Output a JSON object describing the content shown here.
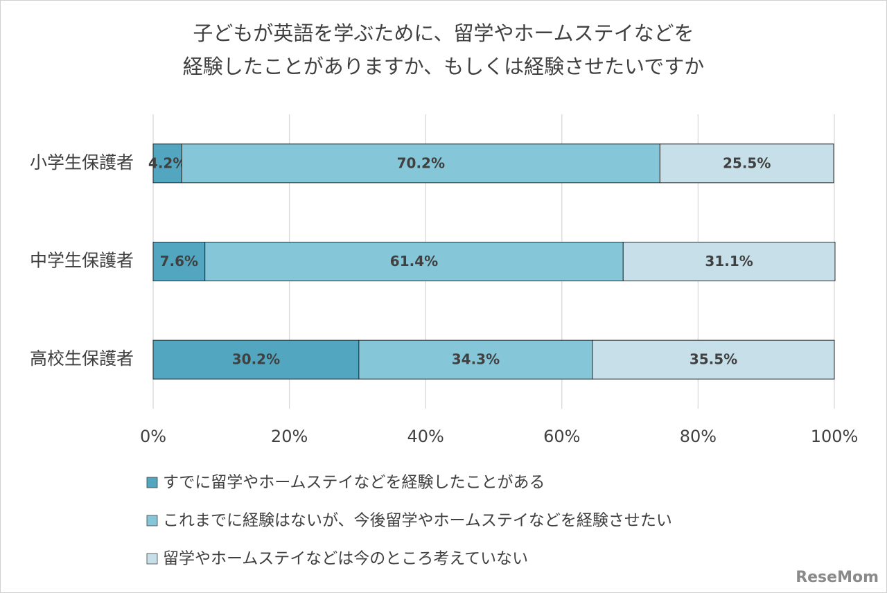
{
  "chart_data": {
    "type": "stacked-barh",
    "title": [
      "子どもが英語を学ぶために、留学やホームステイなどを",
      "経験したことがありますか、もしくは経験させたいですか"
    ],
    "categories": [
      "小学生保護者",
      "中学生保護者",
      "高校生保護者"
    ],
    "series": [
      {
        "name": "すでに留学やホームステイなどを経験したことがある",
        "color": "#52a6bf",
        "values": [
          4.2,
          7.6,
          30.2
        ],
        "value_labels": [
          "4.2%",
          "7.6%",
          "30.2%"
        ]
      },
      {
        "name": "これまでに経験はないが、今後留学やホームステイなどを経験させたい",
        "color": "#85c6d8",
        "values": [
          70.2,
          61.4,
          34.3
        ],
        "value_labels": [
          "70.2%",
          "61.4%",
          "34.3%"
        ]
      },
      {
        "name": "留学やホームステイなどは今のところ考えていない",
        "color": "#c6dfe8",
        "values": [
          25.5,
          31.1,
          35.5
        ],
        "value_labels": [
          "25.5%",
          "31.1%",
          "35.5%"
        ]
      }
    ],
    "xlim": [
      0,
      100
    ],
    "xticks": [
      {
        "value": 0,
        "label": "0%"
      },
      {
        "value": 20,
        "label": "20%"
      },
      {
        "value": 40,
        "label": "40%"
      },
      {
        "value": 60,
        "label": "60%"
      },
      {
        "value": 80,
        "label": "80%"
      },
      {
        "value": 100,
        "label": "100%"
      }
    ],
    "grid": true,
    "legend": "bottom",
    "watermark": "ReseMom"
  }
}
